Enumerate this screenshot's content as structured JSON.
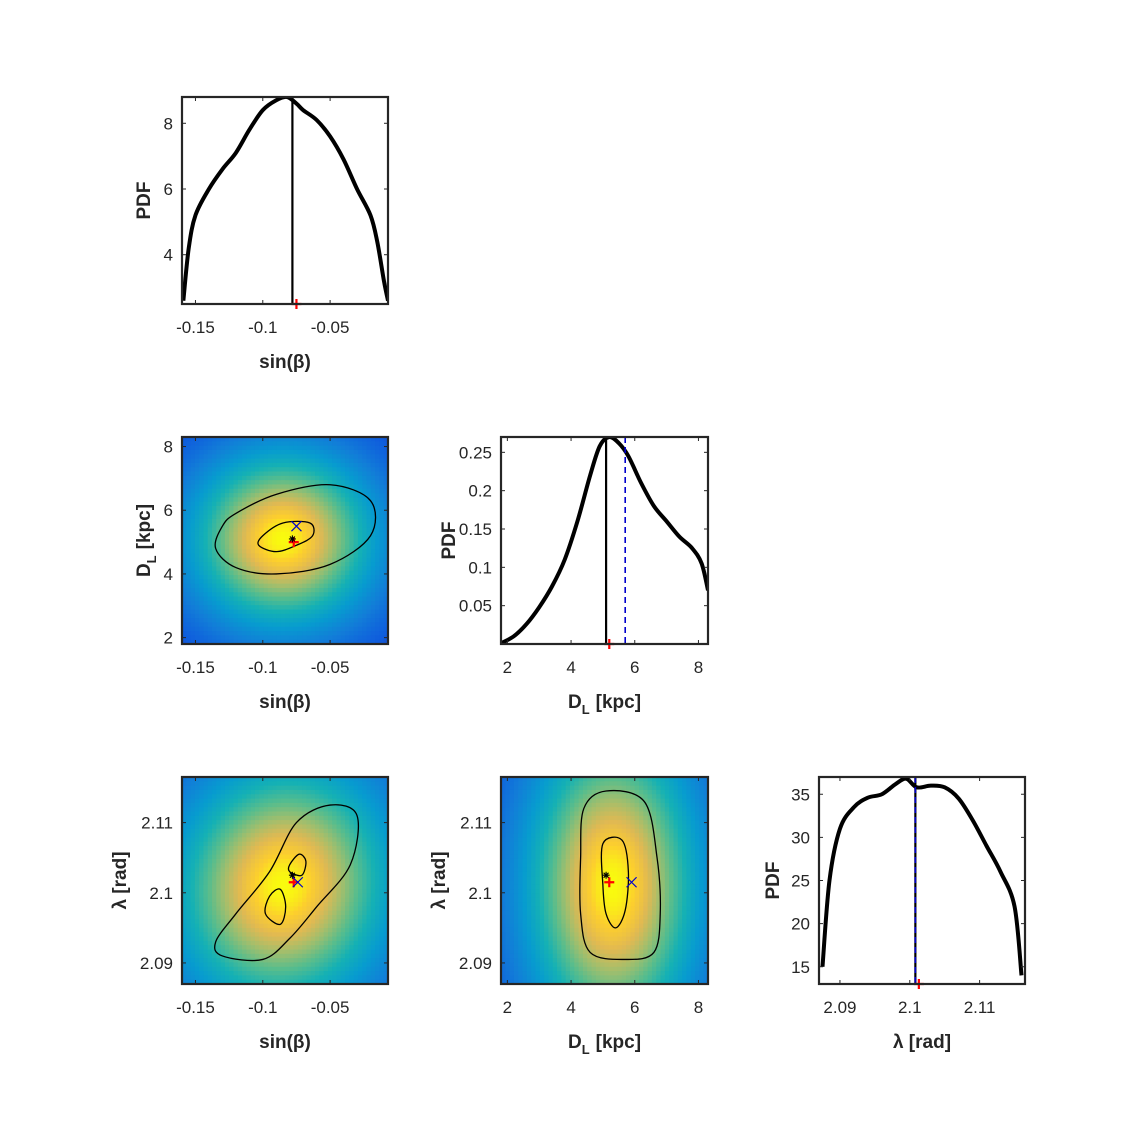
{
  "colors": {
    "axis": "#262626",
    "pdf_line": "#000000",
    "true_marker": "#ff0000",
    "estimate_line": "#0000cc",
    "contour": "#000000",
    "colormap": "parula"
  },
  "chart_data": [
    {
      "id": "p11",
      "type": "line",
      "xlabel": "sin(β)",
      "ylabel": "PDF",
      "xlim": [
        -0.16,
        -0.007
      ],
      "ylim": [
        2.5,
        8.8
      ],
      "xticks": [
        {
          "v": -0.15,
          "label": "-0.15"
        },
        {
          "v": -0.1,
          "label": "-0.1"
        },
        {
          "v": -0.05,
          "label": "-0.05"
        }
      ],
      "yticks": [
        {
          "v": 4,
          "label": "4"
        },
        {
          "v": 6,
          "label": "6"
        },
        {
          "v": 8,
          "label": "8"
        }
      ],
      "x": [
        -0.159,
        -0.155,
        -0.15,
        -0.14,
        -0.13,
        -0.12,
        -0.11,
        -0.1,
        -0.09,
        -0.082,
        -0.075,
        -0.07,
        -0.06,
        -0.05,
        -0.04,
        -0.03,
        -0.02,
        -0.015,
        -0.01,
        -0.007
      ],
      "y": [
        2.6,
        4.2,
        5.2,
        6.0,
        6.6,
        7.1,
        7.8,
        8.4,
        8.7,
        8.8,
        8.6,
        8.4,
        8.1,
        7.6,
        6.9,
        6.0,
        5.2,
        4.4,
        3.2,
        2.6
      ],
      "vline": -0.078,
      "true_x": -0.075,
      "estimate_x": null
    },
    {
      "id": "p21",
      "type": "heatmap",
      "xlabel": "sin(β)",
      "ylabel": "D",
      "ylabel_sub": "L",
      "ylabel_unit": "[kpc]",
      "xlim": [
        -0.16,
        -0.007
      ],
      "ylim": [
        1.8,
        8.3
      ],
      "xticks": [
        {
          "v": -0.15,
          "label": "-0.15"
        },
        {
          "v": -0.1,
          "label": "-0.1"
        },
        {
          "v": -0.05,
          "label": "-0.05"
        }
      ],
      "yticks": [
        {
          "v": 2,
          "label": "2"
        },
        {
          "v": 4,
          "label": "4"
        },
        {
          "v": 6,
          "label": "6"
        },
        {
          "v": 8,
          "label": "8"
        }
      ],
      "peak": {
        "x": -0.085,
        "y": 5.1
      },
      "spread": {
        "x": 0.055,
        "y": 2.2
      },
      "contours": [
        [
          [
            -0.12,
            5.9
          ],
          [
            -0.09,
            6.5
          ],
          [
            -0.05,
            6.8
          ],
          [
            -0.02,
            6.3
          ],
          [
            -0.02,
            5.2
          ],
          [
            -0.05,
            4.3
          ],
          [
            -0.09,
            4.0
          ],
          [
            -0.12,
            4.2
          ],
          [
            -0.135,
            4.8
          ],
          [
            -0.13,
            5.5
          ]
        ],
        [
          [
            -0.1,
            5.2
          ],
          [
            -0.085,
            5.6
          ],
          [
            -0.065,
            5.6
          ],
          [
            -0.063,
            5.2
          ],
          [
            -0.075,
            4.9
          ],
          [
            -0.09,
            4.7
          ],
          [
            -0.103,
            4.9
          ]
        ]
      ],
      "markers": [
        {
          "x": -0.077,
          "y": 5.0,
          "kind": "plus",
          "color": "#ff0000"
        },
        {
          "x": -0.078,
          "y": 5.1,
          "kind": "star",
          "color": "#000000"
        },
        {
          "x": -0.075,
          "y": 5.5,
          "kind": "x",
          "color": "#0000cc"
        }
      ]
    },
    {
      "id": "p22",
      "type": "line",
      "xlabel": "D",
      "xlabel_sub": "L",
      "xlabel_unit": "[kpc]",
      "ylabel": "PDF",
      "xlim": [
        1.8,
        8.3
      ],
      "ylim": [
        0,
        0.27
      ],
      "xticks": [
        {
          "v": 2,
          "label": "2"
        },
        {
          "v": 4,
          "label": "4"
        },
        {
          "v": 6,
          "label": "6"
        },
        {
          "v": 8,
          "label": "8"
        }
      ],
      "yticks": [
        {
          "v": 0.05,
          "label": "0.05"
        },
        {
          "v": 0.1,
          "label": "0.1"
        },
        {
          "v": 0.15,
          "label": "0.15"
        },
        {
          "v": 0.2,
          "label": "0.2"
        },
        {
          "v": 0.25,
          "label": "0.25"
        }
      ],
      "x": [
        1.8,
        2.2,
        2.6,
        3.0,
        3.4,
        3.8,
        4.2,
        4.6,
        4.9,
        5.2,
        5.5,
        5.8,
        6.2,
        6.6,
        7.0,
        7.4,
        7.8,
        8.1,
        8.3
      ],
      "y": [
        0.001,
        0.01,
        0.026,
        0.048,
        0.075,
        0.11,
        0.16,
        0.22,
        0.258,
        0.27,
        0.262,
        0.245,
        0.21,
        0.18,
        0.16,
        0.14,
        0.125,
        0.105,
        0.07
      ],
      "vline": 5.1,
      "true_x": 5.2,
      "estimate_x": 5.7
    },
    {
      "id": "p31",
      "type": "heatmap",
      "xlabel": "sin(β)",
      "ylabel": "λ [rad]",
      "xlim": [
        -0.16,
        -0.007
      ],
      "ylim": [
        2.087,
        2.1165
      ],
      "xticks": [
        {
          "v": -0.15,
          "label": "-0.15"
        },
        {
          "v": -0.1,
          "label": "-0.1"
        },
        {
          "v": -0.05,
          "label": "-0.05"
        }
      ],
      "yticks": [
        {
          "v": 2.09,
          "label": "2.09"
        },
        {
          "v": 2.1,
          "label": "2.1"
        },
        {
          "v": 2.11,
          "label": "2.11"
        }
      ],
      "peak": {
        "x": -0.085,
        "y": 2.101
      },
      "spread": {
        "x": 0.065,
        "y": 0.014
      },
      "tilt": 0.00012,
      "contours": [
        [
          [
            -0.13,
            2.091
          ],
          [
            -0.1,
            2.0905
          ],
          [
            -0.08,
            2.0935
          ],
          [
            -0.06,
            2.098
          ],
          [
            -0.035,
            2.104
          ],
          [
            -0.03,
            2.111
          ],
          [
            -0.05,
            2.1125
          ],
          [
            -0.075,
            2.11
          ],
          [
            -0.095,
            2.103
          ],
          [
            -0.12,
            2.097
          ],
          [
            -0.135,
            2.093
          ]
        ],
        [
          [
            -0.098,
            2.097
          ],
          [
            -0.087,
            2.0955
          ],
          [
            -0.083,
            2.098
          ],
          [
            -0.087,
            2.1005
          ],
          [
            -0.095,
            2.0995
          ]
        ],
        [
          [
            -0.08,
            2.103
          ],
          [
            -0.071,
            2.1025
          ],
          [
            -0.068,
            2.1045
          ],
          [
            -0.073,
            2.1055
          ],
          [
            -0.08,
            2.104
          ]
        ]
      ],
      "markers": [
        {
          "x": -0.077,
          "y": 2.1015,
          "kind": "plus",
          "color": "#ff0000"
        },
        {
          "x": -0.078,
          "y": 2.1025,
          "kind": "star",
          "color": "#000000"
        },
        {
          "x": -0.074,
          "y": 2.1015,
          "kind": "x",
          "color": "#0000cc"
        }
      ]
    },
    {
      "id": "p32",
      "type": "heatmap",
      "xlabel": "D",
      "xlabel_sub": "L",
      "xlabel_unit": "[kpc]",
      "ylabel": "λ [rad]",
      "xlim": [
        1.8,
        8.3
      ],
      "ylim": [
        2.087,
        2.1165
      ],
      "xticks": [
        {
          "v": 2,
          "label": "2"
        },
        {
          "v": 4,
          "label": "4"
        },
        {
          "v": 6,
          "label": "6"
        },
        {
          "v": 8,
          "label": "8"
        }
      ],
      "yticks": [
        {
          "v": 2.09,
          "label": "2.09"
        },
        {
          "v": 2.1,
          "label": "2.1"
        },
        {
          "v": 2.11,
          "label": "2.11"
        }
      ],
      "peak": {
        "x": 5.3,
        "y": 2.101
      },
      "spread": {
        "x": 2.2,
        "y": 0.018
      },
      "contours": [
        [
          [
            4.4,
            2.112
          ],
          [
            5.1,
            2.1145
          ],
          [
            6.3,
            2.113
          ],
          [
            6.7,
            2.105
          ],
          [
            6.8,
            2.097
          ],
          [
            6.6,
            2.0915
          ],
          [
            5.7,
            2.0905
          ],
          [
            4.6,
            2.0915
          ],
          [
            4.3,
            2.097
          ],
          [
            4.3,
            2.105
          ]
        ],
        [
          [
            5.0,
            2.107
          ],
          [
            5.6,
            2.1075
          ],
          [
            5.8,
            2.103
          ],
          [
            5.7,
            2.0975
          ],
          [
            5.4,
            2.095
          ],
          [
            5.1,
            2.097
          ],
          [
            5.0,
            2.101
          ]
        ]
      ],
      "markers": [
        {
          "x": 5.2,
          "y": 2.1015,
          "kind": "plus",
          "color": "#ff0000"
        },
        {
          "x": 5.1,
          "y": 2.1025,
          "kind": "star",
          "color": "#000000"
        },
        {
          "x": 5.9,
          "y": 2.1015,
          "kind": "x",
          "color": "#0000cc"
        }
      ]
    },
    {
      "id": "p33",
      "type": "line",
      "xlabel": "λ [rad]",
      "ylabel": "PDF",
      "xlim": [
        2.087,
        2.1165
      ],
      "ylim": [
        13,
        37
      ],
      "xticks": [
        {
          "v": 2.09,
          "label": "2.09"
        },
        {
          "v": 2.1,
          "label": "2.1"
        },
        {
          "v": 2.11,
          "label": "2.11"
        }
      ],
      "yticks": [
        {
          "v": 15,
          "label": "15"
        },
        {
          "v": 20,
          "label": "20"
        },
        {
          "v": 25,
          "label": "25"
        },
        {
          "v": 30,
          "label": "30"
        },
        {
          "v": 35,
          "label": "35"
        }
      ],
      "x": [
        2.0875,
        2.0885,
        2.09,
        2.092,
        2.094,
        2.096,
        2.098,
        2.0995,
        2.101,
        2.103,
        2.105,
        2.107,
        2.109,
        2.111,
        2.113,
        2.115,
        2.116
      ],
      "y": [
        15.0,
        25.0,
        31.0,
        33.5,
        34.6,
        35.0,
        36.2,
        36.8,
        35.8,
        36.0,
        35.8,
        34.5,
        32.0,
        29.0,
        26.0,
        22.0,
        14.0
      ],
      "vline": 2.1008,
      "true_x": 2.1013,
      "estimate_x": 2.1008
    }
  ]
}
